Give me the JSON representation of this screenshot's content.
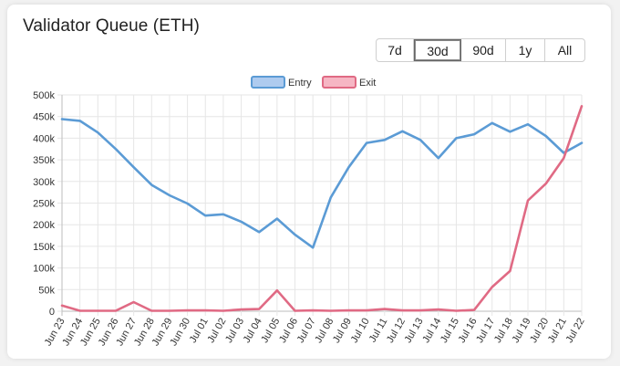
{
  "title": "Validator Queue (ETH)",
  "range_buttons": [
    {
      "label": "7d",
      "active": false
    },
    {
      "label": "30d",
      "active": true
    },
    {
      "label": "90d",
      "active": false
    },
    {
      "label": "1y",
      "active": false
    },
    {
      "label": "All",
      "active": false
    }
  ],
  "colors": {
    "entry_line": "#5b9bd5",
    "entry_fill": "#aecbef",
    "exit_line": "#e06a84",
    "exit_fill": "#f6b6c4",
    "grid": "#e6e6e6",
    "axis": "#bdbdbd"
  },
  "chart_data": {
    "type": "line",
    "title": "",
    "xlabel": "",
    "ylabel": "",
    "ylim": [
      0,
      500000
    ],
    "yticks": [
      "0",
      "50k",
      "100k",
      "150k",
      "200k",
      "250k",
      "300k",
      "350k",
      "400k",
      "450k",
      "500k"
    ],
    "legend_position": "top-center",
    "grid": true,
    "categories": [
      "Jun 23",
      "Jun 24",
      "Jun 25",
      "Jun 26",
      "Jun 27",
      "Jun 28",
      "Jun 29",
      "Jun 30",
      "Jul 01",
      "Jul 02",
      "Jul 03",
      "Jul 04",
      "Jul 05",
      "Jul 06",
      "Jul 07",
      "Jul 08",
      "Jul 09",
      "Jul 10",
      "Jul 11",
      "Jul 12",
      "Jul 13",
      "Jul 14",
      "Jul 15",
      "Jul 16",
      "Jul 17",
      "Jul 18",
      "Jul 19",
      "Jul 20",
      "Jul 21",
      "Jul 22"
    ],
    "series": [
      {
        "name": "Entry",
        "values": [
          444000,
          440000,
          413000,
          375000,
          333000,
          292000,
          268000,
          249000,
          221000,
          224000,
          207000,
          183000,
          214000,
          177000,
          147000,
          263000,
          333000,
          389000,
          396000,
          416000,
          396000,
          354000,
          400000,
          409000,
          435000,
          415000,
          432000,
          405000,
          366000,
          389000
        ]
      },
      {
        "name": "Exit",
        "values": [
          13000,
          1000,
          1000,
          1000,
          21000,
          1000,
          1000,
          2000,
          2000,
          1000,
          4000,
          5000,
          48000,
          1000,
          2000,
          1000,
          2000,
          2000,
          5000,
          2000,
          2000,
          4000,
          1000,
          3000,
          56000,
          93000,
          256000,
          295000,
          354000,
          474000
        ]
      }
    ]
  }
}
